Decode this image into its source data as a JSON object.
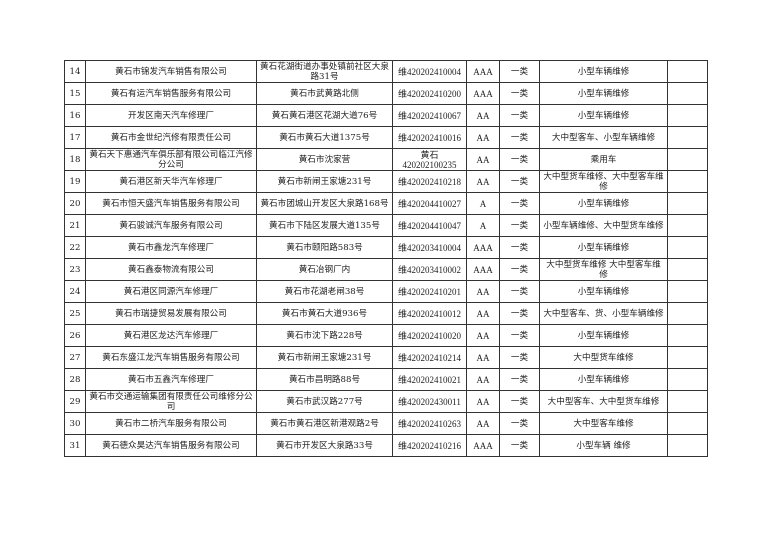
{
  "rows": [
    {
      "no": "14",
      "name": "黄石市锦发汽车销售有限公司",
      "address": "黄石花湖街道办事处镇前社区大泉路31号",
      "license": "维420202410004",
      "grade": "AAA",
      "class": "一类",
      "scope": "小型车辆维修",
      "remark": ""
    },
    {
      "no": "15",
      "name": "黄石有运汽车销售服务有限公司",
      "address": "黄石市武黄路北侧",
      "license": "维420202410200",
      "grade": "AAA",
      "class": "一类",
      "scope": "小型车辆维修",
      "remark": ""
    },
    {
      "no": "16",
      "name": "开发区南天汽车修理厂",
      "address": "黄石黄石港区花湖大道76号",
      "license": "维420202410067",
      "grade": "AA",
      "class": "一类",
      "scope": "小型车辆维修",
      "remark": ""
    },
    {
      "no": "17",
      "name": "黄石市金世纪汽修有限责任公司",
      "address": "黄石市黄石大道1375号",
      "license": "维420202410016",
      "grade": "AA",
      "class": "一类",
      "scope": "大中型客车、小型车辆维修",
      "remark": ""
    },
    {
      "no": "18",
      "name": "黄石天下惠通汽车俱乐部有限公司临江汽修分公司",
      "address": "黄石市沈家营",
      "license": "黄石420202100235",
      "grade": "AA",
      "class": "一类",
      "scope": "乘用车",
      "remark": ""
    },
    {
      "no": "19",
      "name": "黄石港区新天华汽车修理厂",
      "address": "黄石市新闸王家塘231号",
      "license": "维420202410218",
      "grade": "AA",
      "class": "一类",
      "scope": "大中型货车维修、大中型客车维修",
      "remark": ""
    },
    {
      "no": "20",
      "name": "黄石市恒天盛汽车销售服务有限公司",
      "address": "黄石市团城山开发区大泉路168号",
      "license": "维420204410027",
      "grade": "A",
      "class": "一类",
      "scope": "小型车辆维修",
      "remark": ""
    },
    {
      "no": "21",
      "name": "黄石骏诚汽车服务有限公司",
      "address": "黄石市下陆区发展大道135号",
      "license": "维420204410047",
      "grade": "A",
      "class": "一类",
      "scope": "小型车辆维修、大中型货车维修",
      "remark": ""
    },
    {
      "no": "22",
      "name": "黄石市鑫龙汽车修理厂",
      "address": "黄石市颐阳路583号",
      "license": "维420203410004",
      "grade": "AAA",
      "class": "一类",
      "scope": "小型车辆维修",
      "remark": ""
    },
    {
      "no": "23",
      "name": "黄石鑫泰物流有限公司",
      "address": "黄石冶钢厂内",
      "license": "维420203410002",
      "grade": "AAA",
      "class": "一类",
      "scope": "大中型货车维修 大中型客车维修",
      "remark": ""
    },
    {
      "no": "24",
      "name": "黄石港区同源汽车修理厂",
      "address": "黄石市花湖老闸38号",
      "license": "维420202410201",
      "grade": "AA",
      "class": "一类",
      "scope": "小型车辆维修",
      "remark": ""
    },
    {
      "no": "25",
      "name": "黄石市瑞捷贸易发展有限公司",
      "address": "黄石市黄石大道936号",
      "license": "维420202410012",
      "grade": "AA",
      "class": "一类",
      "scope": "大中型客车、货、小型车辆维修",
      "remark": ""
    },
    {
      "no": "26",
      "name": "黄石港区龙达汽车修理厂",
      "address": "黄石市沈下路228号",
      "license": "维420202410020",
      "grade": "AA",
      "class": "一类",
      "scope": "小型车辆维修",
      "remark": ""
    },
    {
      "no": "27",
      "name": "黄石东盛江龙汽车销售服务有限公司",
      "address": "黄石市新闸王家塘231号",
      "license": "维420202410214",
      "grade": "AA",
      "class": "一类",
      "scope": "大中型货车维修",
      "remark": ""
    },
    {
      "no": "28",
      "name": "黄石市五鑫汽车修理厂",
      "address": "黄石市昌明路88号",
      "license": "维420202410021",
      "grade": "AA",
      "class": "一类",
      "scope": "小型车辆维修",
      "remark": ""
    },
    {
      "no": "29",
      "name": "黄石市交通运输集团有限责任公司维修分公司",
      "address": "黄石市武汉路277号",
      "license": "维420202430011",
      "grade": "AA",
      "class": "一类",
      "scope": "大中型客车、大中型货车维修",
      "remark": ""
    },
    {
      "no": "30",
      "name": "黄石市二桥汽车服务有限公司",
      "address": "黄石市黄石港区新港观路2号",
      "license": "维420202410263",
      "grade": "AA",
      "class": "一类",
      "scope": "大中型客车维修",
      "remark": ""
    },
    {
      "no": "31",
      "name": "黄石德众昊达汽车销售服务有限公司",
      "address": "黄石市开发区大泉路33号",
      "license": "维420202410216",
      "grade": "AAA",
      "class": "一类",
      "scope": "小型车辆 维修",
      "remark": ""
    }
  ]
}
